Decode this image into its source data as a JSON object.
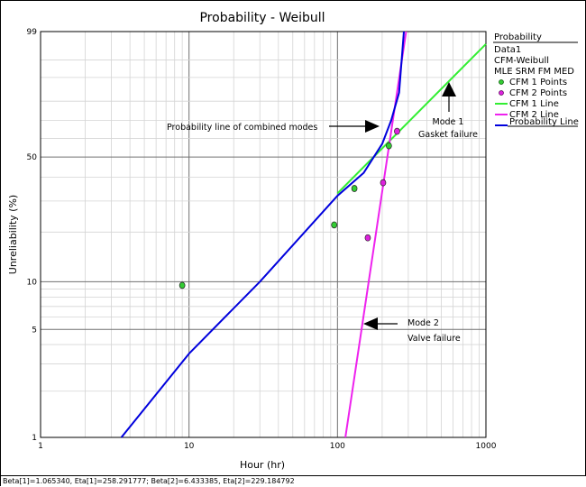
{
  "chart_data": {
    "type": "line",
    "title": "Probability - Weibull",
    "xlabel": "Hour (hr)",
    "ylabel": "Unreliability (%)",
    "x_scale": "log",
    "y_scale": "weibull",
    "xlim": [
      1,
      1000
    ],
    "ylim": [
      1,
      99
    ],
    "x_tick_labels": [
      "1",
      "10",
      "100",
      "1000"
    ],
    "y_tick_labels": [
      "1",
      "5",
      "10",
      "50",
      "99"
    ],
    "grid": true,
    "legend": {
      "position": "right",
      "title": "Probability",
      "info": [
        "Data1",
        "CFM-Weibull",
        "MLE SRM FM MED"
      ],
      "entries": [
        "CFM 1 Points",
        "CFM 2 Points",
        "CFM 1 Line",
        "CFM 2 Line",
        "Probability Line"
      ]
    },
    "series": [
      {
        "name": "CFM 1 Points",
        "kind": "points",
        "color": "#33cc33",
        "points": [
          [
            9,
            9.5
          ],
          [
            95,
            22
          ],
          [
            130,
            35
          ],
          [
            222,
            56
          ]
        ]
      },
      {
        "name": "CFM 2 Points",
        "kind": "points",
        "color": "#dd22dd",
        "points": [
          [
            160,
            18.5
          ],
          [
            203,
            37.5
          ],
          [
            252,
            64
          ]
        ]
      },
      {
        "name": "CFM 1 Line",
        "kind": "line",
        "color": "#33ee33",
        "points": [
          [
            100,
            33
          ],
          [
            1000,
            97.8
          ]
        ]
      },
      {
        "name": "CFM 2 Line",
        "kind": "line",
        "color": "#ee22ee",
        "points": [
          [
            113,
            1
          ],
          [
            290,
            99
          ]
        ]
      },
      {
        "name": "Probability Line",
        "kind": "line",
        "color": "#0000dd",
        "points": [
          [
            3.5,
            1
          ],
          [
            10,
            3.5
          ],
          [
            30,
            10
          ],
          [
            100,
            32
          ],
          [
            150,
            42
          ],
          [
            200,
            57
          ],
          [
            230,
            70
          ],
          [
            260,
            84
          ],
          [
            280,
            99
          ]
        ]
      }
    ],
    "annotations": [
      {
        "lines": [
          "Probability line of combined modes"
        ]
      },
      {
        "lines": [
          "Mode 1",
          "Gasket failure"
        ]
      },
      {
        "lines": [
          "Mode 2",
          "Valve failure"
        ]
      }
    ]
  },
  "status_text": "Beta[1]=1.065340, Eta[1]=258.291777; Beta[2]=6.433385, Eta[2]=229.184792"
}
